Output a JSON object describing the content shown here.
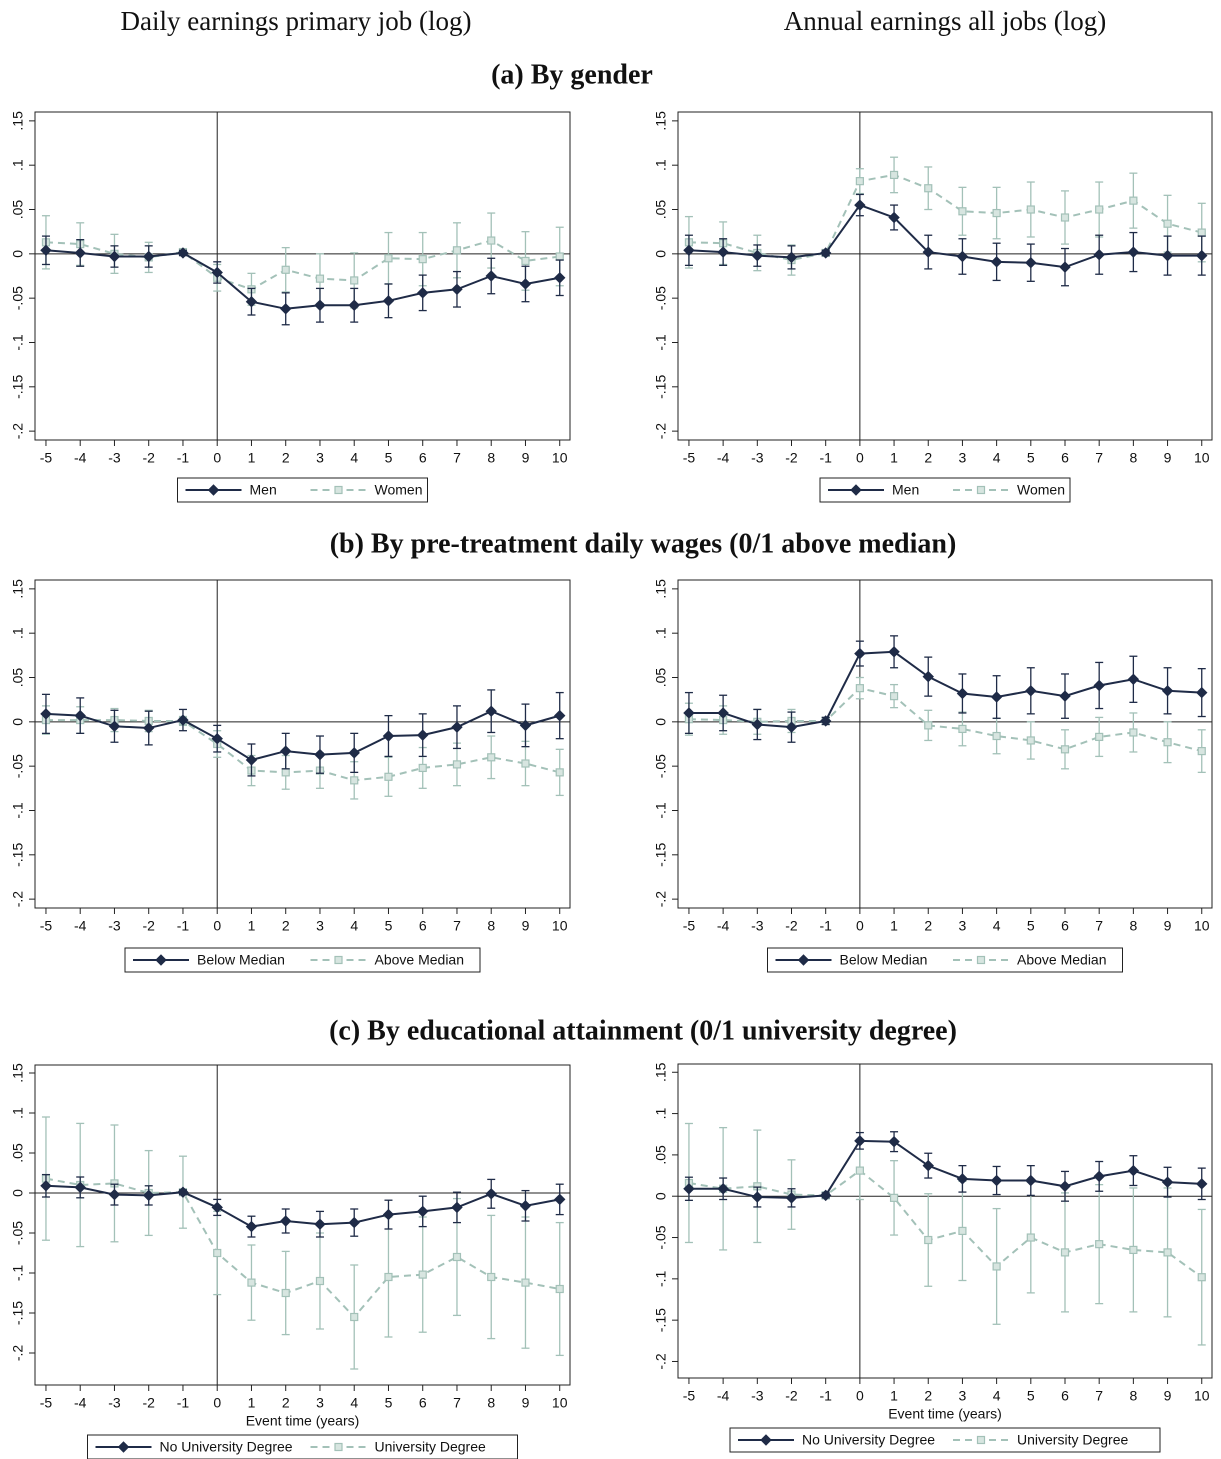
{
  "column_headers": [
    "Daily earnings primary job (log)",
    "Annual earnings all jobs (log)"
  ],
  "panel_titles": [
    "(a) By gender",
    "(b) By pre-treatment daily wages (0/1 above median)",
    "(c) By educational attainment (0/1 university degree)"
  ],
  "chart_data": [
    {
      "type": "line",
      "x": [
        -5,
        -4,
        -3,
        -2,
        -1,
        0,
        1,
        2,
        3,
        4,
        5,
        6,
        7,
        8,
        9,
        10
      ],
      "xlim": [
        -5.32,
        10.3
      ],
      "ylim": [
        -0.21,
        0.16
      ],
      "xticks": [
        -5,
        -4,
        -3,
        -2,
        -1,
        0,
        1,
        2,
        3,
        4,
        5,
        6,
        7,
        8,
        9,
        10
      ],
      "yticks": [
        {
          "value": -0.2,
          "label": "-.2"
        },
        {
          "value": -0.15,
          "label": "-.15"
        },
        {
          "value": -0.1,
          "label": "-.1"
        },
        {
          "value": -0.05,
          "label": "-.05"
        },
        0,
        {
          "value": 0.05,
          "label": ".05"
        },
        {
          "value": 0.1,
          "label": ".1"
        },
        {
          "value": 0.15,
          "label": ".15"
        }
      ],
      "xline": 0,
      "yline": 0,
      "series": [
        {
          "name": "Men",
          "color": "#1f2b47",
          "values": [
            0.004,
            0.001,
            -0.003,
            -0.003,
            0.001,
            -0.021,
            -0.054,
            -0.062,
            -0.058,
            -0.058,
            -0.053,
            -0.044,
            -0.04,
            -0.025,
            -0.034,
            -0.027
          ],
          "errors": [
            0.016,
            0.015,
            0.012,
            0.012,
            0.003,
            0.012,
            0.015,
            0.018,
            0.019,
            0.019,
            0.019,
            0.02,
            0.02,
            0.02,
            0.02,
            0.02
          ]
        },
        {
          "name": "Women",
          "color": "#a3c1b8",
          "values": [
            0.013,
            0.011,
            0.0,
            -0.004,
            0.002,
            -0.027,
            -0.04,
            -0.018,
            -0.028,
            -0.03,
            -0.005,
            -0.006,
            0.004,
            0.015,
            -0.008,
            -0.003
          ],
          "errors": [
            0.03,
            0.024,
            0.022,
            0.017,
            0.003,
            0.015,
            0.018,
            0.025,
            0.028,
            0.031,
            0.029,
            0.03,
            0.031,
            0.031,
            0.033,
            0.033
          ]
        }
      ]
    },
    {
      "type": "line",
      "x": [
        -5,
        -4,
        -3,
        -2,
        -1,
        0,
        1,
        2,
        3,
        4,
        5,
        6,
        7,
        8,
        9,
        10
      ],
      "xlim": [
        -5.32,
        10.3
      ],
      "ylim": [
        -0.21,
        0.16
      ],
      "xticks": [
        -5,
        -4,
        -3,
        -2,
        -1,
        0,
        1,
        2,
        3,
        4,
        5,
        6,
        7,
        8,
        9,
        10
      ],
      "yticks": [
        {
          "value": -0.2,
          "label": "-.2"
        },
        {
          "value": -0.15,
          "label": "-.15"
        },
        {
          "value": -0.1,
          "label": "-.1"
        },
        {
          "value": -0.05,
          "label": "-.05"
        },
        0,
        {
          "value": 0.05,
          "label": ".05"
        },
        {
          "value": 0.1,
          "label": ".1"
        },
        {
          "value": 0.15,
          "label": ".15"
        }
      ],
      "xline": 0,
      "yline": 0,
      "series": [
        {
          "name": "Men",
          "color": "#1f2b47",
          "values": [
            0.004,
            0.002,
            -0.002,
            -0.004,
            0.001,
            0.055,
            0.041,
            0.002,
            -0.003,
            -0.009,
            -0.01,
            -0.015,
            -0.001,
            0.002,
            -0.002,
            -0.002
          ],
          "errors": [
            0.017,
            0.015,
            0.012,
            0.013,
            0.003,
            0.012,
            0.014,
            0.019,
            0.02,
            0.021,
            0.021,
            0.021,
            0.022,
            0.022,
            0.022,
            0.022
          ]
        },
        {
          "name": "Women",
          "color": "#a3c1b8",
          "values": [
            0.013,
            0.012,
            0.001,
            -0.007,
            0.001,
            0.082,
            0.089,
            0.074,
            0.048,
            0.046,
            0.05,
            0.041,
            0.05,
            0.06,
            0.034,
            0.024
          ],
          "errors": [
            0.029,
            0.024,
            0.02,
            0.017,
            0.003,
            0.014,
            0.02,
            0.024,
            0.027,
            0.029,
            0.031,
            0.03,
            0.031,
            0.031,
            0.032,
            0.033
          ]
        }
      ]
    },
    {
      "type": "line",
      "x": [
        -5,
        -4,
        -3,
        -2,
        -1,
        0,
        1,
        2,
        3,
        4,
        5,
        6,
        7,
        8,
        9,
        10
      ],
      "xlim": [
        -5.32,
        10.3
      ],
      "ylim": [
        -0.21,
        0.16
      ],
      "xticks": [
        -5,
        -4,
        -3,
        -2,
        -1,
        0,
        1,
        2,
        3,
        4,
        5,
        6,
        7,
        8,
        9,
        10
      ],
      "yticks": [
        {
          "value": -0.2,
          "label": "-.2"
        },
        {
          "value": -0.15,
          "label": "-.15"
        },
        {
          "value": -0.1,
          "label": "-.1"
        },
        {
          "value": -0.05,
          "label": "-.05"
        },
        0,
        {
          "value": 0.05,
          "label": ".05"
        },
        {
          "value": 0.1,
          "label": ".1"
        },
        {
          "value": 0.15,
          "label": ".15"
        }
      ],
      "xline": 0,
      "yline": 0,
      "series": [
        {
          "name": "Below Median",
          "color": "#1f2b47",
          "values": [
            0.009,
            0.007,
            -0.005,
            -0.007,
            0.002,
            -0.019,
            -0.043,
            -0.033,
            -0.037,
            -0.035,
            -0.016,
            -0.015,
            -0.006,
            0.012,
            -0.004,
            0.007
          ],
          "errors": [
            0.022,
            0.02,
            0.018,
            0.019,
            0.012,
            0.015,
            0.018,
            0.02,
            0.021,
            0.022,
            0.023,
            0.024,
            0.024,
            0.024,
            0.024,
            0.026
          ]
        },
        {
          "name": "Above Median",
          "color": "#a3c1b8",
          "values": [
            0.002,
            0.002,
            0.002,
            0.001,
            0.001,
            -0.025,
            -0.055,
            -0.057,
            -0.055,
            -0.066,
            -0.062,
            -0.052,
            -0.048,
            -0.04,
            -0.047,
            -0.057
          ],
          "errors": [
            0.016,
            0.015,
            0.013,
            0.012,
            0.005,
            0.015,
            0.017,
            0.019,
            0.02,
            0.021,
            0.022,
            0.023,
            0.024,
            0.024,
            0.025,
            0.026
          ]
        }
      ]
    },
    {
      "type": "line",
      "x": [
        -5,
        -4,
        -3,
        -2,
        -1,
        0,
        1,
        2,
        3,
        4,
        5,
        6,
        7,
        8,
        9,
        10
      ],
      "xlim": [
        -5.32,
        10.3
      ],
      "ylim": [
        -0.21,
        0.16
      ],
      "xticks": [
        -5,
        -4,
        -3,
        -2,
        -1,
        0,
        1,
        2,
        3,
        4,
        5,
        6,
        7,
        8,
        9,
        10
      ],
      "yticks": [
        {
          "value": -0.2,
          "label": "-.2"
        },
        {
          "value": -0.15,
          "label": "-.15"
        },
        {
          "value": -0.1,
          "label": "-.1"
        },
        {
          "value": -0.05,
          "label": "-.05"
        },
        0,
        {
          "value": 0.05,
          "label": ".05"
        },
        {
          "value": 0.1,
          "label": ".1"
        },
        {
          "value": 0.15,
          "label": ".15"
        }
      ],
      "xline": 0,
      "yline": 0,
      "series": [
        {
          "name": "Below Median",
          "color": "#1f2b47",
          "values": [
            0.01,
            0.01,
            -0.003,
            -0.006,
            0.001,
            0.077,
            0.079,
            0.051,
            0.032,
            0.028,
            0.035,
            0.029,
            0.041,
            0.048,
            0.035,
            0.033
          ],
          "errors": [
            0.023,
            0.02,
            0.017,
            0.017,
            0.004,
            0.014,
            0.018,
            0.022,
            0.022,
            0.024,
            0.026,
            0.025,
            0.026,
            0.026,
            0.026,
            0.027
          ]
        },
        {
          "name": "Above Median",
          "color": "#a3c1b8",
          "values": [
            0.003,
            0.002,
            0.0,
            0.001,
            0.001,
            0.038,
            0.029,
            -0.004,
            -0.008,
            -0.016,
            -0.021,
            -0.031,
            -0.017,
            -0.012,
            -0.023,
            -0.033
          ],
          "errors": [
            0.018,
            0.016,
            0.014,
            0.013,
            0.004,
            0.012,
            0.013,
            0.017,
            0.019,
            0.02,
            0.021,
            0.022,
            0.022,
            0.022,
            0.023,
            0.024
          ]
        }
      ]
    },
    {
      "type": "line",
      "x": [
        -5,
        -4,
        -3,
        -2,
        -1,
        0,
        1,
        2,
        3,
        4,
        5,
        6,
        7,
        8,
        9,
        10
      ],
      "xlim": [
        -5.32,
        10.3
      ],
      "ylim": [
        -0.24,
        0.16
      ],
      "xticks": [
        -5,
        -4,
        -3,
        -2,
        -1,
        0,
        1,
        2,
        3,
        4,
        5,
        6,
        7,
        8,
        9,
        10
      ],
      "yticks": [
        {
          "value": -0.2,
          "label": "-.2"
        },
        {
          "value": -0.15,
          "label": "-.15"
        },
        {
          "value": -0.1,
          "label": "-.1"
        },
        {
          "value": -0.05,
          "label": "-.05"
        },
        0,
        {
          "value": 0.05,
          "label": ".05"
        },
        {
          "value": 0.1,
          "label": ".1"
        },
        {
          "value": 0.15,
          "label": ".15"
        }
      ],
      "xline": 0,
      "yline": 0,
      "xlabel": "Event time (years)",
      "series": [
        {
          "name": "No University Degree",
          "color": "#1f2b47",
          "values": [
            0.009,
            0.007,
            -0.002,
            -0.003,
            0.001,
            -0.018,
            -0.042,
            -0.035,
            -0.039,
            -0.037,
            -0.027,
            -0.023,
            -0.018,
            -0.001,
            -0.016,
            -0.008
          ],
          "errors": [
            0.014,
            0.013,
            0.013,
            0.012,
            0.003,
            0.01,
            0.013,
            0.015,
            0.016,
            0.017,
            0.018,
            0.019,
            0.019,
            0.018,
            0.019,
            0.019
          ]
        },
        {
          "name": "University Degree",
          "color": "#a3c1b8",
          "values": [
            0.018,
            0.01,
            0.012,
            0.0,
            0.001,
            -0.075,
            -0.112,
            -0.125,
            -0.11,
            -0.155,
            -0.105,
            -0.102,
            -0.08,
            -0.105,
            -0.112,
            -0.12
          ],
          "errors": [
            0.077,
            0.077,
            0.073,
            0.053,
            0.045,
            0.052,
            0.047,
            0.052,
            0.06,
            0.065,
            0.075,
            0.072,
            0.073,
            0.077,
            0.082,
            0.083
          ]
        }
      ]
    },
    {
      "type": "line",
      "x": [
        -5,
        -4,
        -3,
        -2,
        -1,
        0,
        1,
        2,
        3,
        4,
        5,
        6,
        7,
        8,
        9,
        10
      ],
      "xlim": [
        -5.32,
        10.3
      ],
      "ylim": [
        -0.22,
        0.16
      ],
      "xticks": [
        -5,
        -4,
        -3,
        -2,
        -1,
        0,
        1,
        2,
        3,
        4,
        5,
        6,
        7,
        8,
        9,
        10
      ],
      "yticks": [
        {
          "value": -0.2,
          "label": "-.2"
        },
        {
          "value": -0.15,
          "label": "-.15"
        },
        {
          "value": -0.1,
          "label": "-.1"
        },
        {
          "value": -0.05,
          "label": "-.05"
        },
        0,
        {
          "value": 0.05,
          "label": ".05"
        },
        {
          "value": 0.1,
          "label": ".1"
        },
        {
          "value": 0.15,
          "label": ".15"
        }
      ],
      "xline": 0,
      "yline": 0,
      "xlabel": "Event time (years)",
      "series": [
        {
          "name": "No University Degree",
          "color": "#1f2b47",
          "values": [
            0.009,
            0.009,
            -0.001,
            -0.002,
            0.001,
            0.067,
            0.066,
            0.037,
            0.021,
            0.019,
            0.019,
            0.012,
            0.024,
            0.031,
            0.017,
            0.015
          ],
          "errors": [
            0.014,
            0.013,
            0.012,
            0.011,
            0.003,
            0.01,
            0.012,
            0.015,
            0.016,
            0.017,
            0.018,
            0.018,
            0.018,
            0.018,
            0.018,
            0.019
          ]
        },
        {
          "name": "University Degree",
          "color": "#a3c1b8",
          "values": [
            0.016,
            0.009,
            0.012,
            0.002,
            0.001,
            0.031,
            -0.002,
            -0.053,
            -0.042,
            -0.085,
            -0.05,
            -0.068,
            -0.058,
            -0.065,
            -0.068,
            -0.098
          ],
          "errors": [
            0.072,
            0.074,
            0.068,
            0.042,
            0.004,
            0.035,
            0.045,
            0.056,
            0.06,
            0.07,
            0.067,
            0.072,
            0.072,
            0.075,
            0.078,
            0.082
          ]
        }
      ]
    }
  ]
}
